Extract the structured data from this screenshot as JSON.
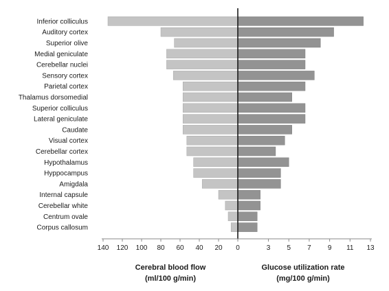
{
  "chart_data": {
    "type": "bar",
    "orientation": "horizontal-butterfly",
    "categories": [
      "Inferior colliculus",
      "Auditory cortex",
      "Superior olive",
      "Medial geniculate",
      "Cerebellar nuclei",
      "Sensory cortex",
      "Parietal cortex",
      "Thalamus dorsomedial",
      "Superior colliculus",
      "Lateral geniculate",
      "Caudate",
      "Visual cortex",
      "Cerebellar cortex",
      "Hypothalamus",
      "Hyppocampus",
      "Amigdala",
      "Internal capsule",
      "Cerebellar white",
      "Centrum ovale",
      "Corpus callosum"
    ],
    "series": [
      {
        "values": [
          135,
          80,
          66,
          74,
          74,
          67,
          57,
          57,
          57,
          57,
          57,
          53,
          53,
          46,
          46,
          37,
          20,
          13,
          10,
          7
        ],
        "color": "#c4c4c4"
      },
      {
        "values": [
          12.3,
          9.4,
          8.1,
          6.6,
          6.6,
          7.5,
          6.6,
          5.3,
          6.6,
          6.6,
          5.3,
          4.6,
          3.7,
          5.0,
          4.2,
          4.2,
          2.2,
          2.2,
          1.9,
          1.9
        ],
        "color": "#939393"
      }
    ],
    "left_axis": {
      "title_line1": "Cerebral blood flow",
      "title_line2": "(ml/100 g/min)",
      "ticks": [
        "140",
        "120",
        "100",
        "80",
        "60",
        "40",
        "20",
        "0"
      ],
      "range": [
        0,
        140
      ]
    },
    "right_axis": {
      "title_line1": "Glucose utilization rate",
      "title_line2": "(mg/100 g/min)",
      "ticks": [
        "3",
        "5",
        "7",
        "9",
        "11",
        "13"
      ],
      "range": [
        0,
        13
      ]
    },
    "grid": false,
    "legend": "none"
  }
}
